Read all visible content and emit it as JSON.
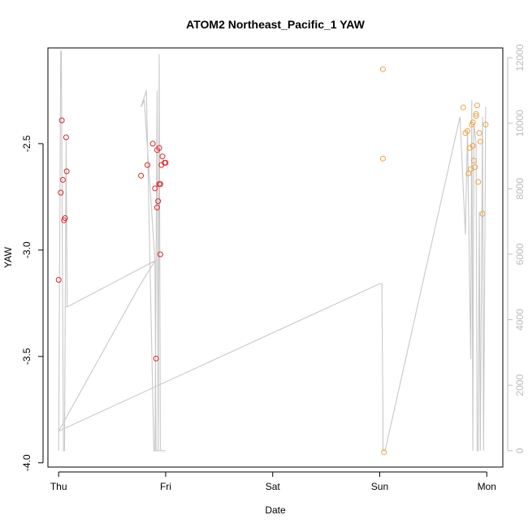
{
  "chart_data": {
    "type": "scatter",
    "title": "ATOM2 Northeast_Pacific_1 YAW",
    "xlabel": "Date",
    "ylabel": "YAW",
    "x_ticks": [
      "Thu",
      "Fri",
      "Sat",
      "Sun",
      "Mon"
    ],
    "xlim": [
      -0.1,
      4.15
    ],
    "ylim": [
      -4.02,
      -2.05
    ],
    "y_ticks": [
      -4.0,
      -3.5,
      -3.0,
      -2.5
    ],
    "y_tick_labels": [
      "-4.0",
      "-3.5",
      "-3.0",
      "-2.5"
    ],
    "y2_ticks": [
      0,
      2000,
      4000,
      6000,
      8000,
      10000,
      12000
    ],
    "y2_tick_labels": [
      "0",
      "2000",
      "4000",
      "6000",
      "8000",
      "10000",
      "12000"
    ],
    "y2lim": [
      -500,
      12300
    ],
    "grid": false,
    "legend": "none",
    "colors": {
      "series_red": "#e0262a",
      "series_orange": "#f0a040",
      "line": "#c8c8c8",
      "axis": "#000000",
      "axis2": "#bbbbbb"
    },
    "series": [
      {
        "color": "#e0262a",
        "x": [
          0.0,
          0.02,
          0.03,
          0.04,
          0.05,
          0.06,
          0.07
        ],
        "y": [
          -3.14,
          -2.73,
          -2.39,
          -2.67,
          -2.86,
          -2.85,
          -2.47
        ],
        "extra_x": [
          0.075
        ],
        "extra_y": [
          -2.63
        ]
      },
      {
        "color": "#e0262a",
        "x": [
          0.77,
          0.83,
          0.88,
          0.9,
          0.91,
          0.92,
          0.92,
          0.93,
          0.94,
          0.94,
          0.95,
          0.95,
          0.96,
          0.97,
          0.99,
          1.0
        ],
        "y": [
          -2.65,
          -2.6,
          -2.5,
          -2.71,
          -3.51,
          -2.8,
          -2.53,
          -2.77,
          -2.52,
          -2.69,
          -2.69,
          -3.02,
          -2.6,
          -2.56,
          -2.59,
          -2.59
        ]
      },
      {
        "color": "#f0a040",
        "x": [
          3.03,
          3.03,
          3.04,
          3.78,
          3.8,
          3.82,
          3.83,
          3.84,
          3.85,
          3.86,
          3.87,
          3.87,
          3.88,
          3.89,
          3.9,
          3.9,
          3.91,
          3.92,
          3.93,
          3.94,
          3.96,
          3.99
        ],
        "y": [
          -2.15,
          -2.57,
          -3.95,
          -2.33,
          -2.45,
          -2.44,
          -2.64,
          -2.52,
          -2.62,
          -2.41,
          -2.4,
          -2.51,
          -2.58,
          -2.61,
          -2.36,
          -2.37,
          -2.32,
          -2.68,
          -2.45,
          -2.49,
          -2.83,
          -2.41
        ]
      }
    ],
    "line_series": {
      "axis": "right",
      "x": [
        0.0,
        0.02,
        0.025,
        0.045,
        0.055,
        0.07,
        0.08,
        0.06,
        0.085,
        0.9,
        0.8,
        0.77,
        0.82,
        0.89,
        0.9,
        0.92,
        0.93,
        0.94,
        0.95,
        0.97,
        0.98,
        1.0,
        0.97,
        0.95,
        0.94,
        0.93,
        0.92,
        0.91,
        0.9,
        0.75,
        0.0,
        3.0,
        3.02,
        3.03,
        3.03,
        3.05,
        3.75,
        3.8,
        3.82,
        3.83,
        3.85,
        3.86,
        3.87,
        3.88,
        3.9,
        3.91,
        3.92,
        3.93,
        3.94,
        3.96,
        3.97,
        3.99
      ],
      "y": [
        0,
        12200,
        12200,
        0,
        0,
        9500,
        4400,
        4400,
        4400,
        5800,
        10700,
        10500,
        11000,
        0,
        0,
        11000,
        0,
        12100,
        0,
        0,
        0,
        0,
        0,
        0,
        0,
        0,
        0,
        0,
        5800,
        5000,
        600,
        5100,
        5100,
        1100,
        0,
        0,
        10200,
        6600,
        9800,
        7500,
        2800,
        10700,
        0,
        10000,
        9400,
        0,
        0,
        7300,
        0,
        10200,
        0,
        10500
      ]
    }
  }
}
